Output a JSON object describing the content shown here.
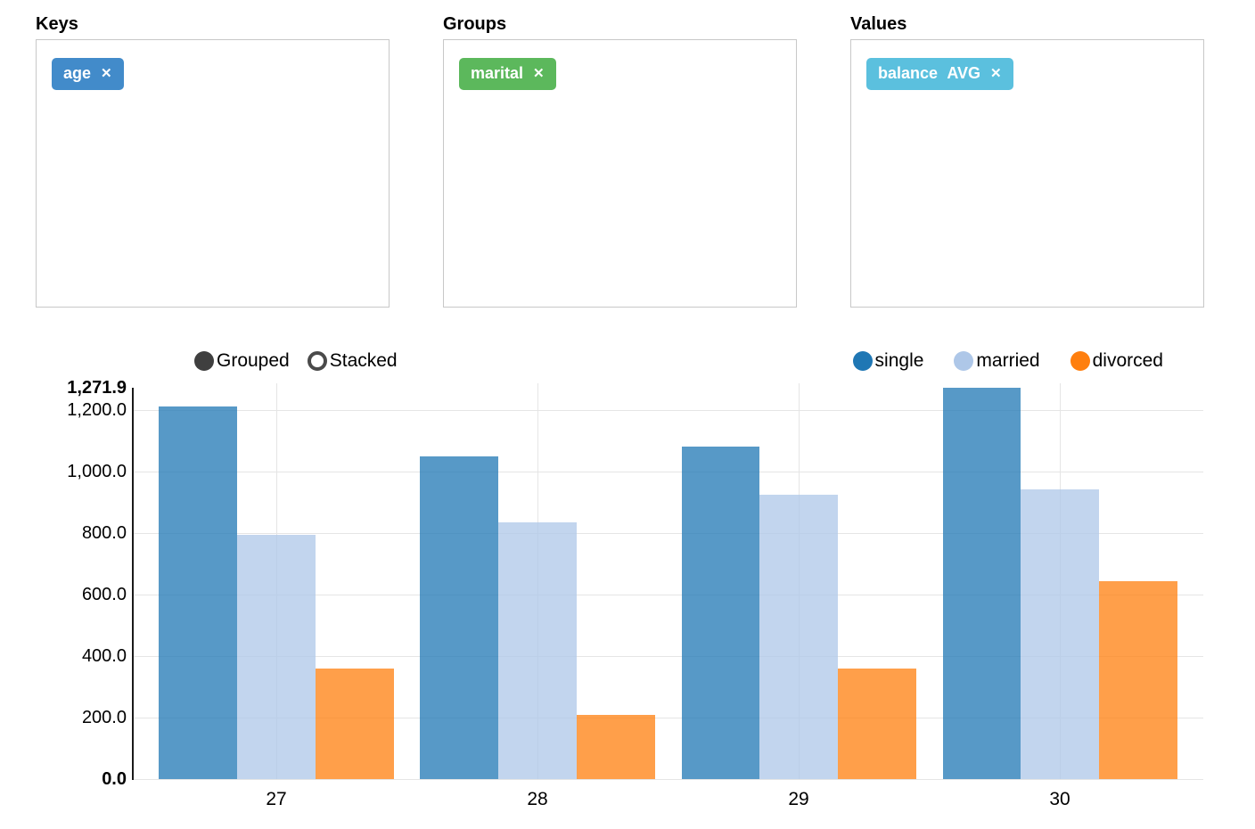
{
  "panels": {
    "keys": {
      "label": "Keys",
      "tags": [
        {
          "label": "age",
          "color": "#428bca",
          "remove_icon": "✕"
        }
      ]
    },
    "groups": {
      "label": "Groups",
      "tags": [
        {
          "label": "marital",
          "color": "#5cb85c",
          "remove_icon": "✕"
        }
      ]
    },
    "values": {
      "label": "Values",
      "tags": [
        {
          "label": "balance AVG",
          "color": "#5bc0de",
          "remove_icon": "✕"
        }
      ]
    }
  },
  "chart_controls": {
    "modes": [
      {
        "label": "Grouped",
        "selected": true
      },
      {
        "label": "Stacked",
        "selected": false
      }
    ]
  },
  "chart_data": {
    "type": "bar",
    "mode": "grouped",
    "categories": [
      "27",
      "28",
      "29",
      "30"
    ],
    "series": [
      {
        "name": "single",
        "color": "#1f77b4",
        "bar_color": "rgba(31,119,180,0.75)",
        "values": [
          1210,
          1050,
          1080,
          1271.9
        ]
      },
      {
        "name": "married",
        "color": "#aec7e8",
        "bar_color": "rgba(174,199,232,0.75)",
        "values": [
          793,
          836,
          923,
          943
        ]
      },
      {
        "name": "divorced",
        "color": "#ff7f0e",
        "bar_color": "rgba(255,127,14,0.75)",
        "values": [
          359,
          208,
          359,
          642
        ]
      }
    ],
    "xlabel": "",
    "ylabel": "",
    "ylim": [
      0,
      1271.9
    ],
    "y_ticks": [
      {
        "value": 0,
        "label": "0.0",
        "bold": true
      },
      {
        "value": 200,
        "label": "200.0",
        "bold": false
      },
      {
        "value": 400,
        "label": "400.0",
        "bold": false
      },
      {
        "value": 600,
        "label": "600.0",
        "bold": false
      },
      {
        "value": 800,
        "label": "800.0",
        "bold": false
      },
      {
        "value": 1000,
        "label": "1,000.0",
        "bold": false
      },
      {
        "value": 1200,
        "label": "1,200.0",
        "bold": false
      },
      {
        "value": 1271.9,
        "label": "1,271.9",
        "bold": true
      }
    ],
    "grid": true,
    "legend_position": "top-right"
  }
}
